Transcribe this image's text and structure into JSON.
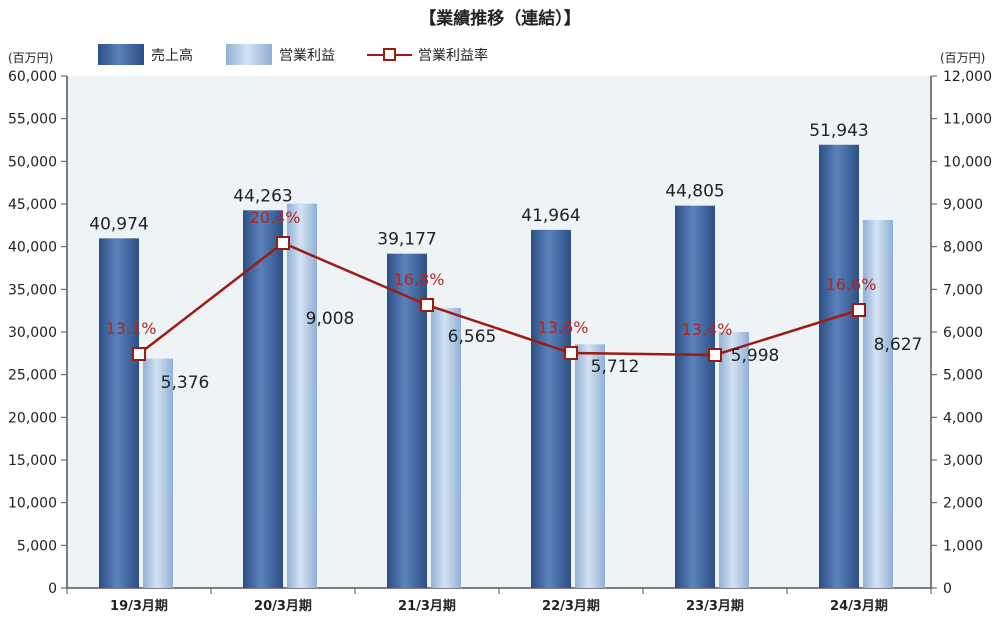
{
  "chart_data": {
    "type": "bar",
    "title": "【業績推移（連結）】",
    "categories": [
      "19/3月期",
      "20/3月期",
      "21/3月期",
      "22/3月期",
      "23/3月期",
      "24/3月期"
    ],
    "series": [
      {
        "name": "売上高",
        "axis": "left",
        "values": [
          40974,
          44263,
          39177,
          41964,
          44805,
          51943
        ],
        "labels": [
          "40,974",
          "44,263",
          "39,177",
          "41,964",
          "44,805",
          "51,943"
        ]
      },
      {
        "name": "営業利益",
        "axis": "right",
        "values": [
          5376,
          9008,
          6565,
          5712,
          5998,
          8627
        ],
        "labels": [
          "5,376",
          "9,008",
          "6,565",
          "5,712",
          "5,998",
          "8,627"
        ]
      },
      {
        "name": "営業利益率",
        "type": "line",
        "values": [
          13.1,
          20.4,
          16.8,
          13.6,
          13.4,
          16.6
        ],
        "labels": [
          "13.1%",
          "20.4%",
          "16.8%",
          "13.6%",
          "13.4%",
          "16.6%"
        ]
      }
    ],
    "y_left": {
      "label": "(百万円)",
      "min": 0,
      "max": 60000,
      "ticks": [
        "0",
        "5,000",
        "10,000",
        "15,000",
        "20,000",
        "25,000",
        "30,000",
        "35,000",
        "40,000",
        "45,000",
        "50,000",
        "55,000",
        "60,000"
      ]
    },
    "y_right": {
      "label": "(百万円)",
      "min": 0,
      "max": 12000,
      "ticks": [
        "0",
        "1,000",
        "2,000",
        "3,000",
        "4,000",
        "5,000",
        "6,000",
        "7,000",
        "8,000",
        "9,000",
        "10,000",
        "11,000",
        "12,000"
      ]
    },
    "legend_position": "top",
    "grid": false,
    "colors": {
      "sales": "#3d67a3",
      "profit": "#a9c4e2",
      "rate_line": "#9e1b12",
      "plot_bg": "#eef3f6"
    }
  }
}
